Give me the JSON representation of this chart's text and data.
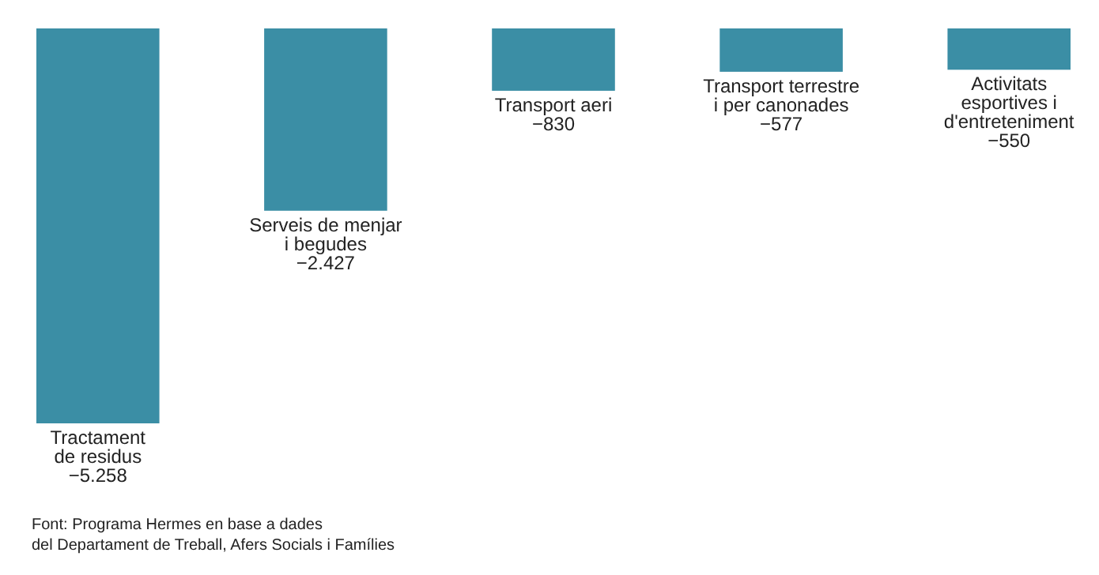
{
  "chart_data": {
    "type": "bar",
    "categories": [
      "Tractament\nde residus",
      "Serveis de menjar\ni begudes",
      "Transport aeri",
      "Transport terrestre\ni per canonades",
      "Activitats\nesportives i\nd'entreteniment"
    ],
    "values": [
      -5258,
      -2427,
      -830,
      -577,
      -550
    ],
    "value_labels": [
      "−5.258",
      "−2.427",
      "−830",
      "−577",
      "−550"
    ],
    "color": "#3b8ea5",
    "annotations": [
      "Font: Programa Hermes en base a dades\ndel Departament de Treball, Afers Socials i Famílies"
    ]
  }
}
